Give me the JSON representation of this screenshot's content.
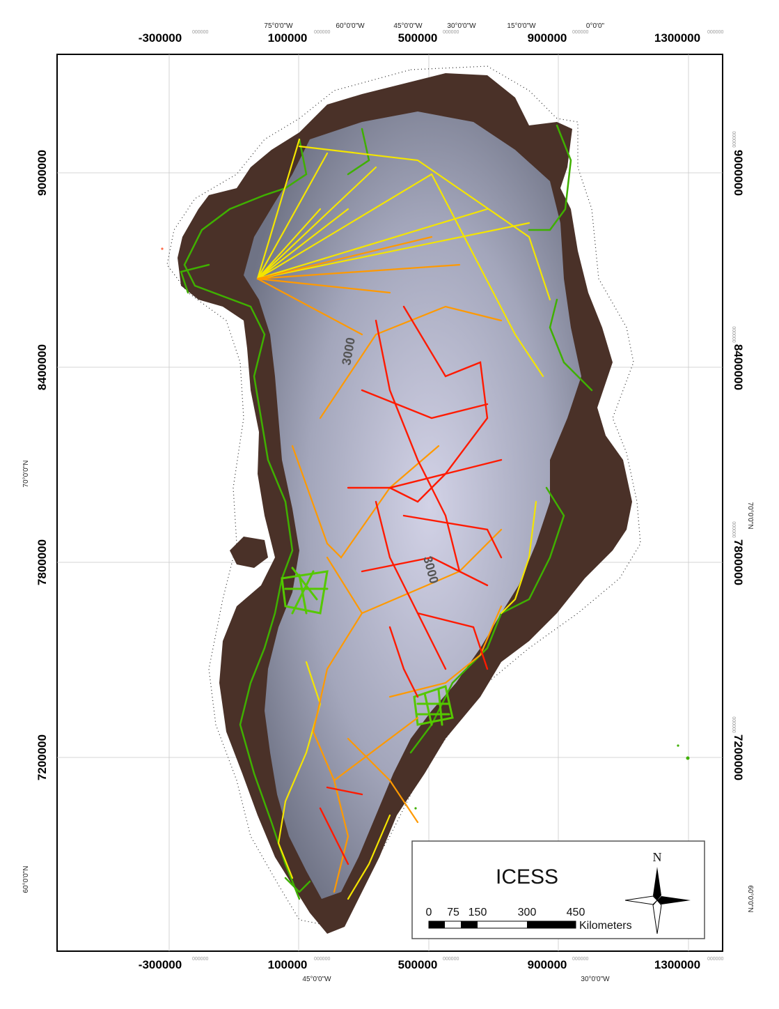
{
  "map": {
    "title": "ICESS",
    "grid": {
      "x_ticks": [
        "-300000",
        "100000",
        "500000",
        "900000",
        "1300000"
      ],
      "y_ticks": [
        "9000000",
        "8400000",
        "7800000",
        "7200000"
      ],
      "small_label": "000000"
    },
    "top_longitude_labels": [
      "75°0'0\"W",
      "60°0'0\"W",
      "45°0'0\"W",
      "30°0'0\"W",
      "15°0'0\"W",
      "0°0'0\""
    ],
    "bottom_longitude_labels": [
      "45°0'0\"W",
      "30°0'0\"W"
    ],
    "left_latitude_labels": [
      "70°0'0\"N",
      "60°0'0\"N"
    ],
    "right_latitude_labels": [
      "70°0'0\"N",
      "60°0'0\"N"
    ],
    "contour_labels": [
      "3000",
      "3000"
    ],
    "scale_bar": {
      "values": [
        "0",
        "75",
        "150",
        "300",
        "450"
      ],
      "unit": "Kilometers"
    },
    "north_arrow": "N",
    "colors": {
      "rock": "#4a3128",
      "ice": "#9a9cb0",
      "high_track": "#ff1a00",
      "mid_track": "#ff9900",
      "low_track": "#f4e500",
      "coast_track": "#3fb000"
    }
  }
}
